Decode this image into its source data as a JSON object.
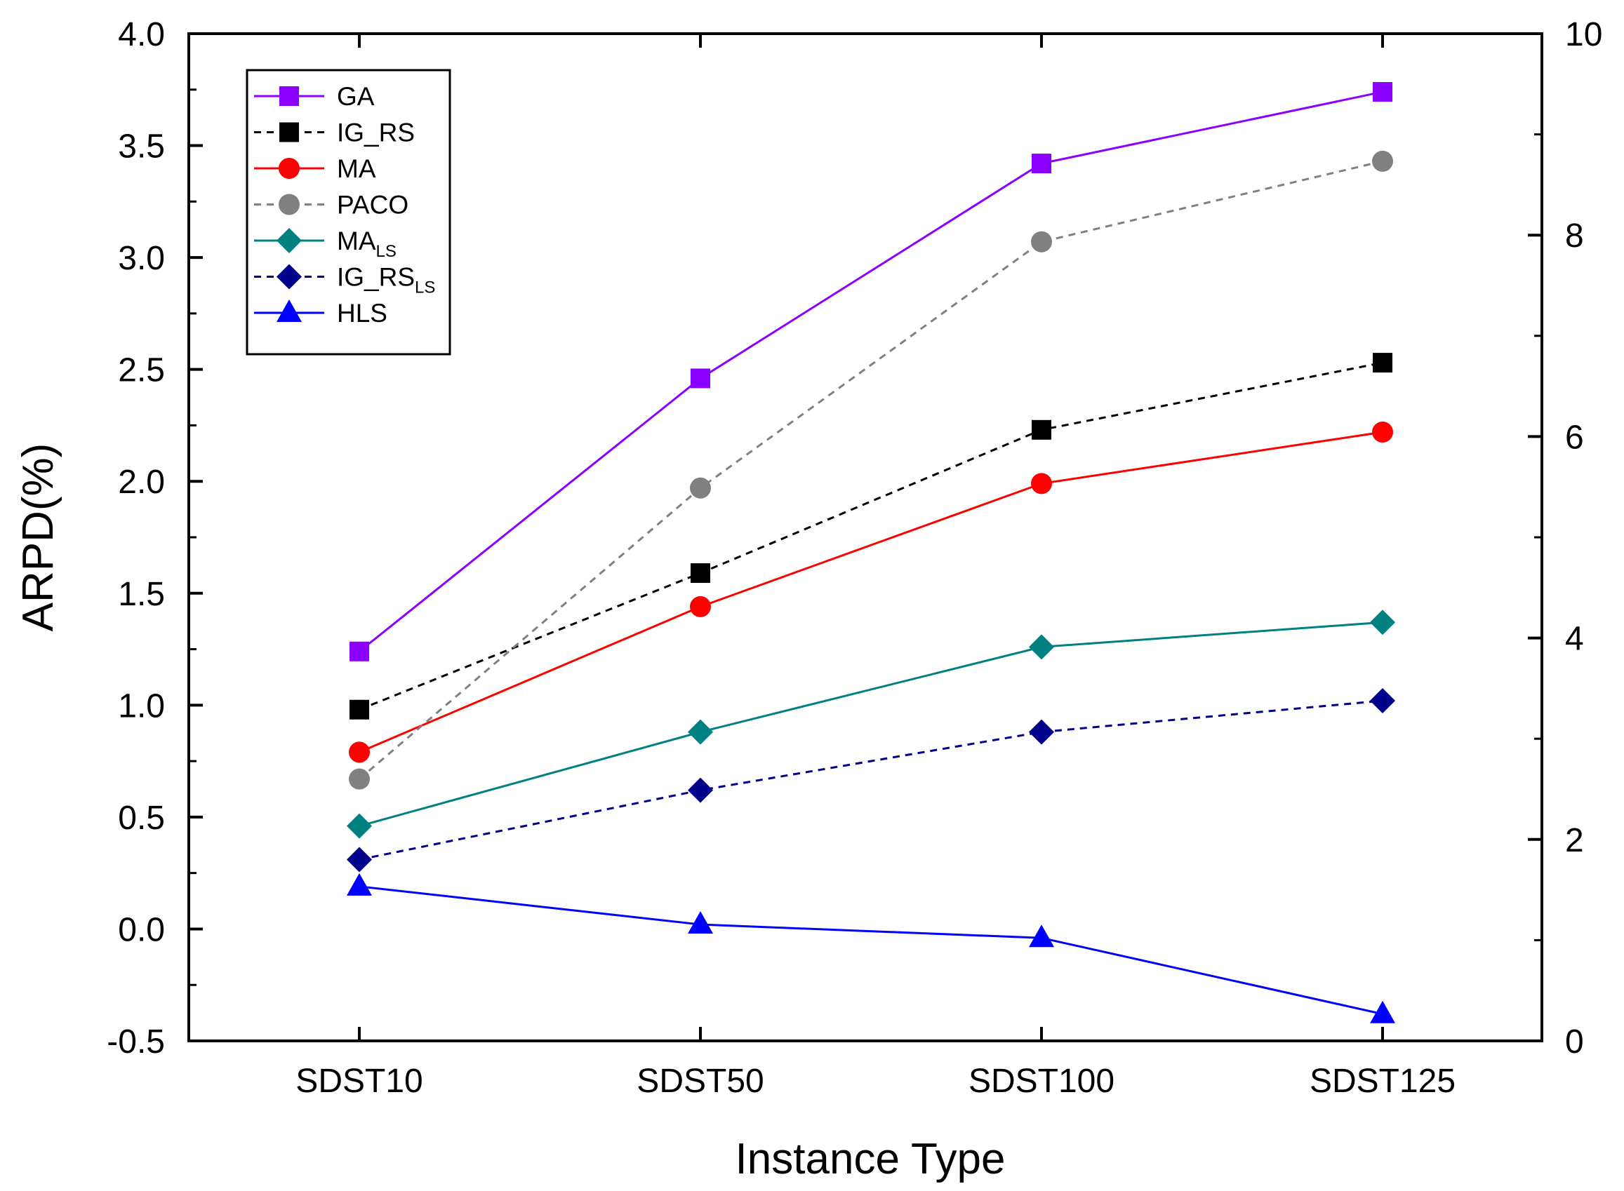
{
  "chart_data": {
    "type": "line",
    "title": "",
    "xlabel": "Instance Type",
    "ylabel": "ARPD(%)",
    "categories": [
      "SDST10",
      "SDST50",
      "SDST100",
      "SDST125"
    ],
    "ylim": [
      -0.5,
      4.0
    ],
    "yticks": [
      "-0.5",
      "0.0",
      "0.5",
      "1.0",
      "1.5",
      "2.0",
      "2.5",
      "3.0",
      "3.5",
      "4.0"
    ],
    "y2lim": [
      0,
      10
    ],
    "y2ticks": [
      "0",
      "2",
      "4",
      "6",
      "8",
      "10"
    ],
    "legend_position": "top-left",
    "series": [
      {
        "name": "GA",
        "sub": "",
        "color": "#8B00FF",
        "dash": false,
        "marker": "square",
        "values": [
          1.24,
          2.46,
          3.42,
          3.74
        ]
      },
      {
        "name": "IG_RS",
        "sub": "",
        "color": "#000000",
        "dash": true,
        "marker": "square",
        "values": [
          0.98,
          1.59,
          2.23,
          2.53
        ]
      },
      {
        "name": "MA",
        "sub": "",
        "color": "#FF0000",
        "dash": false,
        "marker": "circle",
        "values": [
          0.79,
          1.44,
          1.99,
          2.22
        ]
      },
      {
        "name": "PACO",
        "sub": "",
        "color": "#808080",
        "dash": true,
        "marker": "circle",
        "values": [
          0.67,
          1.97,
          3.07,
          3.43
        ]
      },
      {
        "name": "MA",
        "sub": "LS",
        "color": "#008080",
        "dash": false,
        "marker": "diamond",
        "values": [
          0.46,
          0.88,
          1.26,
          1.37
        ]
      },
      {
        "name": "IG_RS",
        "sub": "LS",
        "color": "#00008B",
        "dash": true,
        "marker": "diamond",
        "values": [
          0.31,
          0.62,
          0.88,
          1.02
        ]
      },
      {
        "name": "HLS",
        "sub": "",
        "color": "#0000FF",
        "dash": false,
        "marker": "triangle",
        "values": [
          0.19,
          0.02,
          -0.04,
          -0.38
        ]
      }
    ]
  }
}
